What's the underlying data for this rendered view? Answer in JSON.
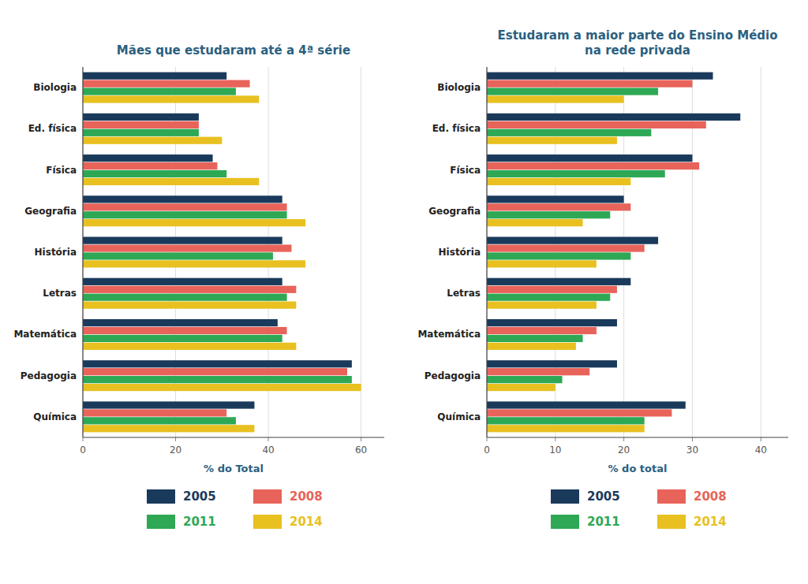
{
  "chart_data": [
    {
      "type": "bar",
      "orientation": "horizontal",
      "title": "Mães que estudaram até a 4ª série",
      "xlabel": "% do Total",
      "categories": [
        "Biologia",
        "Ed. física",
        "Física",
        "Geografia",
        "História",
        "Letras",
        "Matemática",
        "Pedagogia",
        "Química"
      ],
      "series": [
        {
          "name": "2005",
          "color": "#1a3a5c",
          "values": [
            31,
            25,
            28,
            43,
            43,
            43,
            42,
            58,
            37
          ]
        },
        {
          "name": "2008",
          "color": "#e8635a",
          "values": [
            36,
            25,
            29,
            44,
            45,
            46,
            44,
            57,
            31
          ]
        },
        {
          "name": "2011",
          "color": "#2ea855",
          "values": [
            33,
            25,
            31,
            44,
            41,
            44,
            43,
            58,
            33
          ]
        },
        {
          "name": "2014",
          "color": "#e8c020",
          "values": [
            38,
            30,
            38,
            48,
            48,
            46,
            46,
            60,
            37
          ]
        }
      ],
      "xlim": [
        0,
        65
      ],
      "xticks": [
        0,
        20,
        40,
        60
      ],
      "grid": true,
      "legend": "bottom"
    },
    {
      "type": "bar",
      "orientation": "horizontal",
      "title": "Estudaram a maior parte do Ensino Médio\nna rede privada",
      "xlabel": "% do total",
      "categories": [
        "Biologia",
        "Ed. física",
        "Física",
        "Geografia",
        "História",
        "Letras",
        "Matemática",
        "Pedagogia",
        "Química"
      ],
      "series": [
        {
          "name": "2005",
          "color": "#1a3a5c",
          "values": [
            33,
            37,
            30,
            20,
            25,
            21,
            19,
            19,
            29
          ]
        },
        {
          "name": "2008",
          "color": "#e8635a",
          "values": [
            30,
            32,
            31,
            21,
            23,
            19,
            16,
            15,
            27
          ]
        },
        {
          "name": "2011",
          "color": "#2ea855",
          "values": [
            25,
            24,
            26,
            18,
            21,
            18,
            14,
            11,
            23
          ]
        },
        {
          "name": "2014",
          "color": "#e8c020",
          "values": [
            20,
            19,
            21,
            14,
            16,
            16,
            13,
            10,
            23
          ]
        }
      ],
      "xlim": [
        0,
        44
      ],
      "xticks": [
        0,
        10,
        20,
        30,
        40
      ],
      "grid": true,
      "legend": "bottom"
    }
  ]
}
